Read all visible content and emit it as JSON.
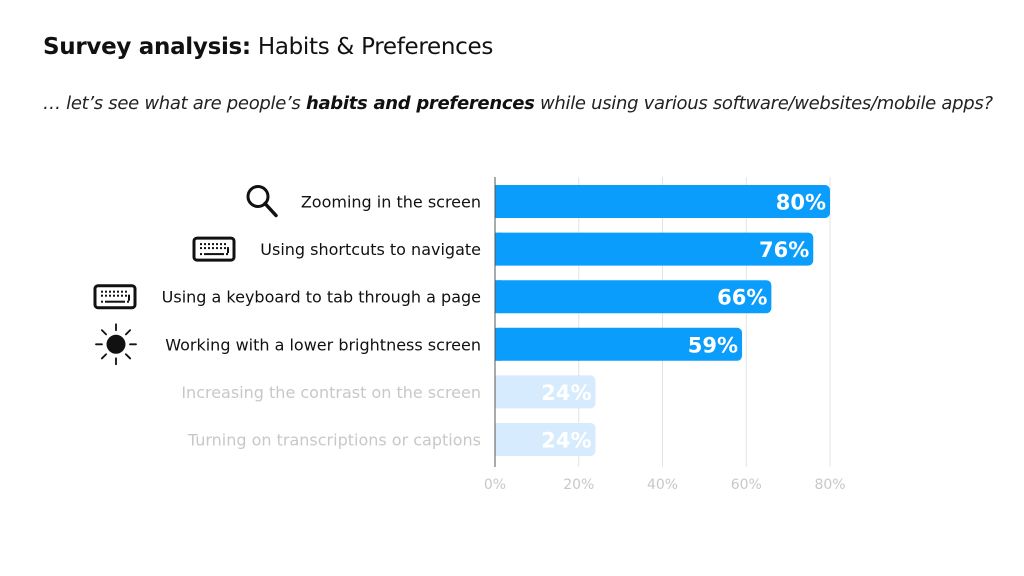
{
  "header": {
    "title_bold": "Survey analysis:",
    "title_rest": " Habits & Preferences",
    "subtitle_pre": "… let’s see what are people’s ",
    "subtitle_bold": "habits and preferences",
    "subtitle_post": " while using various software/websites/mobile apps?"
  },
  "colors": {
    "bar_highlight": "#0a9dfb",
    "bar_dim": "#d6ebfd",
    "label_dim": "#c8c8c8",
    "grid": "#e3e3e3",
    "axis": "#555555"
  },
  "chart_data": {
    "type": "bar",
    "orientation": "horizontal",
    "categories": [
      "Zooming in the screen",
      "Using shortcuts to navigate",
      "Using a keyboard to tab through a page",
      "Working with a lower brightness screen",
      "Increasing the contrast on the screen",
      "Turning on transcriptions or captions"
    ],
    "values": [
      80,
      76,
      66,
      59,
      24,
      24
    ],
    "value_labels": [
      "80%",
      "76%",
      "66%",
      "59%",
      "24%",
      "24%"
    ],
    "highlighted": [
      true,
      true,
      true,
      true,
      false,
      false
    ],
    "icons": [
      "magnifier-icon",
      "keyboard-icon",
      "keyboard-icon",
      "sun-icon",
      null,
      null
    ],
    "xlim": [
      0,
      80
    ],
    "xticks": [
      0,
      20,
      40,
      60,
      80
    ],
    "xtick_labels": [
      "0%",
      "20%",
      "40%",
      "60%",
      "80%"
    ],
    "grid": true,
    "title": "",
    "xlabel": "",
    "ylabel": ""
  }
}
